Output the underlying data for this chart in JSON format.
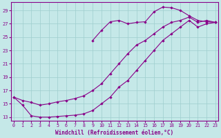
{
  "xlabel": "Windchill (Refroidissement éolien,°C)",
  "background_color": "#c5e8e8",
  "grid_color": "#9ecece",
  "line_color": "#880088",
  "yticks": [
    13,
    15,
    17,
    19,
    21,
    23,
    25,
    27,
    29
  ],
  "xticks": [
    0,
    1,
    2,
    3,
    4,
    5,
    6,
    7,
    8,
    9,
    10,
    11,
    12,
    13,
    14,
    15,
    16,
    17,
    18,
    19,
    20,
    21,
    22,
    23
  ],
  "ylim": [
    12.5,
    30.2
  ],
  "xlim": [
    -0.3,
    23.3
  ],
  "line_top_x": [
    9,
    10,
    11,
    12,
    13,
    14,
    15,
    16,
    17,
    18,
    19,
    20,
    21,
    22,
    23
  ],
  "line_top_y": [
    24.5,
    26.0,
    27.3,
    27.5,
    27.0,
    27.2,
    27.3,
    28.8,
    29.5,
    29.4,
    29.0,
    28.2,
    27.5,
    27.3,
    27.2
  ],
  "line_mid_x": [
    0,
    1,
    2,
    3,
    4,
    5,
    6,
    7,
    8,
    9,
    10,
    11,
    12,
    13,
    14,
    15,
    16,
    17,
    18,
    19,
    20,
    21,
    22,
    23
  ],
  "line_mid_y": [
    16.0,
    15.5,
    15.2,
    14.8,
    15.0,
    15.3,
    15.5,
    15.8,
    16.2,
    17.0,
    18.0,
    19.5,
    21.0,
    22.5,
    23.8,
    24.5,
    25.5,
    26.5,
    27.2,
    27.5,
    28.0,
    27.2,
    27.5,
    27.2
  ],
  "line_bot_x": [
    0,
    1,
    2,
    3,
    4,
    5,
    6,
    7,
    8,
    9,
    10,
    11,
    12,
    13,
    14,
    15,
    16,
    17,
    18,
    19,
    20,
    21,
    22,
    23
  ],
  "line_bot_y": [
    16.0,
    14.8,
    13.2,
    13.0,
    13.0,
    13.1,
    13.2,
    13.3,
    13.5,
    14.0,
    15.0,
    16.0,
    17.5,
    18.5,
    20.0,
    21.5,
    23.0,
    24.5,
    25.5,
    26.5,
    27.5,
    26.5,
    27.0,
    27.2
  ]
}
